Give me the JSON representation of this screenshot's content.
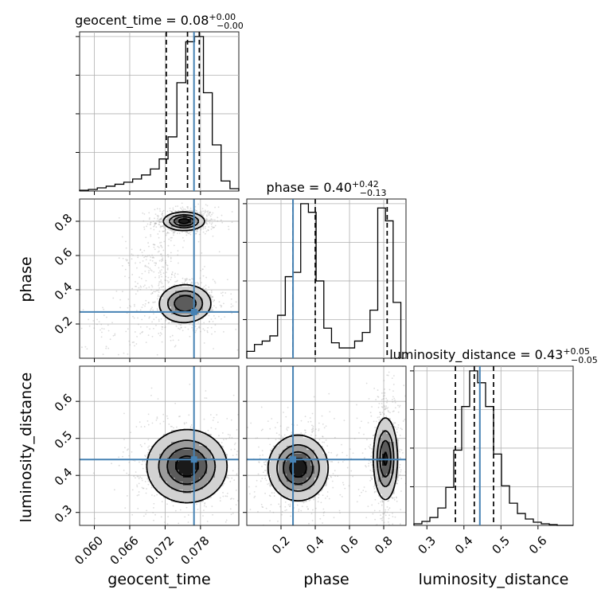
{
  "colors": {
    "truth": "#4682b4",
    "hist": "#000000",
    "grid": "#b0b0b0",
    "scatter": "#9a9a9a",
    "density_levels": [
      "#f4f4f4",
      "#d2d2d2",
      "#9c9c9c",
      "#5c5c5c",
      "#1a1a1a"
    ]
  },
  "chart_data": {
    "type": "corner",
    "parameters": [
      {
        "name": "geocent_time",
        "range": [
          0.0575,
          0.0845
        ],
        "ticks": [
          0.06,
          0.066,
          0.072,
          0.078
        ],
        "tick_labels": [
          "0.060",
          "0.066",
          "0.072",
          "0.078"
        ],
        "title": {
          "base": "geocent_time = 0.08",
          "sup": "+0.00",
          "sub": "−0.00"
        },
        "truth": 0.0769,
        "quantiles": [
          0.0722,
          0.0758,
          0.0778
        ],
        "hist": {
          "bins": [
            0.0575,
            0.059,
            0.0605,
            0.062,
            0.0635,
            0.065,
            0.0665,
            0.068,
            0.0695,
            0.071,
            0.0725,
            0.074,
            0.0755,
            0.077,
            0.0785,
            0.08,
            0.0815,
            0.083,
            0.0845
          ],
          "counts": [
            2,
            4,
            8,
            12,
            17,
            22,
            30,
            40,
            55,
            80,
            135,
            270,
            372,
            385,
            245,
            115,
            25,
            6
          ]
        }
      },
      {
        "name": "phase",
        "range": [
          0.0,
          0.93
        ],
        "ticks": [
          0.2,
          0.4,
          0.6,
          0.8
        ],
        "tick_labels": [
          "0.2",
          "0.4",
          "0.6",
          "0.8"
        ],
        "title": {
          "base": "phase = 0.40",
          "sup": "+0.42",
          "sub": "−0.13"
        },
        "truth": 0.27,
        "quantiles": [
          0.27,
          0.4,
          0.82
        ],
        "hist": {
          "bins": [
            0.0,
            0.045,
            0.09,
            0.135,
            0.18,
            0.225,
            0.27,
            0.315,
            0.36,
            0.405,
            0.45,
            0.495,
            0.54,
            0.585,
            0.63,
            0.675,
            0.72,
            0.765,
            0.81,
            0.855,
            0.9
          ],
          "counts": [
            8,
            16,
            20,
            26,
            50,
            95,
            100,
            180,
            170,
            90,
            35,
            18,
            12,
            12,
            20,
            30,
            56,
            175,
            160,
            65
          ]
        }
      },
      {
        "name": "luminosity_distance",
        "range": [
          0.265,
          0.695
        ],
        "ticks": [
          0.3,
          0.4,
          0.5,
          0.6
        ],
        "tick_labels": [
          "0.3",
          "0.4",
          "0.5",
          "0.6"
        ],
        "title": {
          "base": "luminosity_distance = 0.43",
          "sup": "+0.05",
          "sub": "−0.05"
        },
        "truth": 0.443,
        "quantiles": [
          0.377,
          0.428,
          0.48
        ],
        "hist": {
          "bins": [
            0.265,
            0.2865,
            0.308,
            0.3295,
            0.351,
            0.3725,
            0.394,
            0.4155,
            0.437,
            0.4585,
            0.48,
            0.5015,
            0.523,
            0.5445,
            0.566,
            0.5875,
            0.609,
            0.6305,
            0.652,
            0.6735,
            0.695
          ],
          "counts": [
            2,
            5,
            10,
            22,
            48,
            95,
            150,
            195,
            180,
            150,
            90,
            50,
            28,
            15,
            8,
            4,
            2,
            1,
            0,
            0
          ]
        }
      }
    ],
    "pairs": [
      {
        "x": "geocent_time",
        "y": "phase",
        "modes": [
          {
            "center": [
              0.0752,
              0.8
            ],
            "spread": [
              0.0017,
              0.026
            ],
            "peak": 1.0
          },
          {
            "center": [
              0.0754,
              0.32
            ],
            "spread": [
              0.0022,
              0.055
            ],
            "peak": 0.85
          },
          {
            "center": [
              0.07,
              0.58
            ],
            "spread": [
              0.0016,
              0.05
            ],
            "peak": 0.12
          },
          {
            "center": [
              0.066,
              0.17
            ],
            "spread": [
              0.005,
              0.06
            ],
            "peak": 0.08
          }
        ]
      },
      {
        "x": "geocent_time",
        "y": "luminosity_distance",
        "modes": [
          {
            "center": [
              0.0757,
              0.425
            ],
            "spread": [
              0.0033,
              0.048
            ],
            "peak": 1.0
          }
        ]
      },
      {
        "x": "phase",
        "y": "luminosity_distance",
        "modes": [
          {
            "center": [
              0.3,
              0.42
            ],
            "spread": [
              0.085,
              0.043
            ],
            "peak": 1.0
          },
          {
            "center": [
              0.81,
              0.445
            ],
            "spread": [
              0.035,
              0.055
            ],
            "peak": 0.9
          }
        ]
      }
    ],
    "density_levels": [
      0.12,
      0.35,
      0.6,
      0.85
    ],
    "grid": true
  }
}
